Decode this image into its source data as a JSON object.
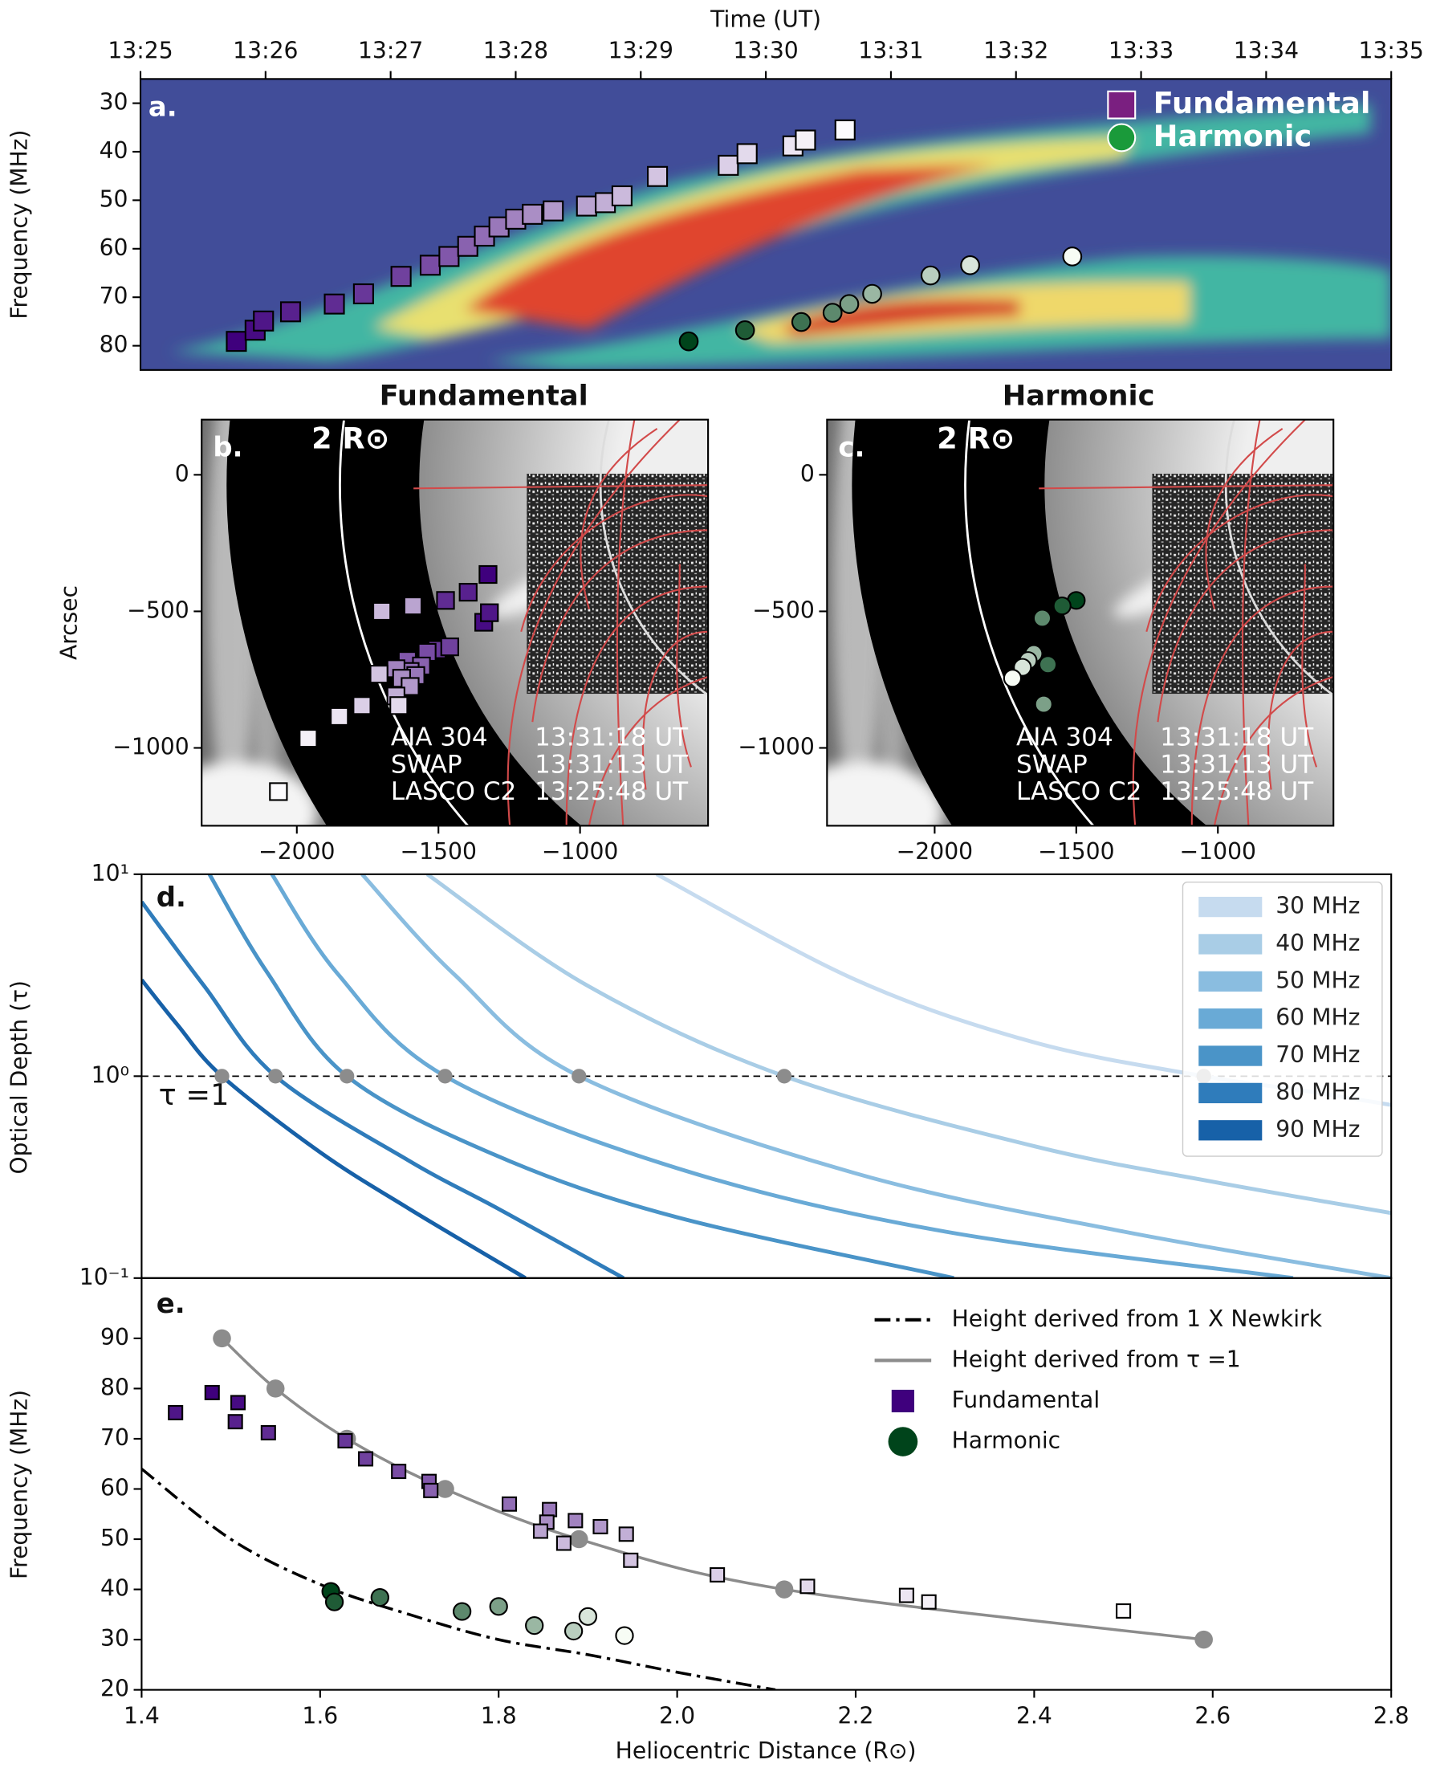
{
  "chart_data": [
    {
      "type": "scatter",
      "label": "a.",
      "xlabel": "Time (UT)",
      "ylabel": "Frequency (MHz)",
      "xlim": [
        "13:25",
        "13:35"
      ],
      "xticks": [
        "13:25",
        "13:26",
        "13:27",
        "13:28",
        "13:29",
        "13:30",
        "13:31",
        "13:32",
        "13:33",
        "13:34",
        "13:35"
      ],
      "ylim": [
        85,
        25
      ],
      "yticks": [
        30,
        40,
        50,
        60,
        70,
        80
      ],
      "legend": "upper right",
      "series": [
        {
          "name": "Fundamental",
          "marker": "square",
          "color": "#7a1f80",
          "colormap": [
            "#3f007d",
            "#fcfbfd"
          ],
          "x": [
            "13:25:46",
            "13:25:55",
            "13:25:59",
            "13:26:12",
            "13:26:33",
            "13:26:47",
            "13:27:05",
            "13:27:19",
            "13:27:28",
            "13:27:37",
            "13:27:45",
            "13:27:52",
            "13:28:00",
            "13:28:08",
            "13:28:18",
            "13:28:34",
            "13:28:43",
            "13:28:51",
            "13:29:08",
            "13:29:42",
            "13:29:51",
            "13:30:13",
            "13:30:19",
            "13:30:38"
          ],
          "values": [
            79.1,
            76.8,
            74.9,
            73.0,
            71.4,
            69.3,
            65.7,
            63.4,
            61.6,
            59.5,
            57.4,
            55.5,
            53.9,
            52.9,
            52.2,
            51.2,
            50.5,
            49.1,
            45.1,
            42.8,
            40.4,
            38.8,
            37.6,
            35.5
          ]
        },
        {
          "name": "Harmonic",
          "marker": "circle",
          "color": "#1a9a3a",
          "colormap": [
            "#00441b",
            "#f7fcf5"
          ],
          "x": [
            "13:29:23",
            "13:29:50",
            "13:30:17",
            "13:30:32",
            "13:30:40",
            "13:30:51",
            "13:31:19",
            "13:31:38",
            "13:32:27"
          ],
          "values": [
            79.1,
            76.8,
            75.1,
            73.2,
            71.4,
            69.3,
            65.5,
            63.4,
            61.6
          ]
        }
      ]
    },
    {
      "type": "scatter",
      "label": "b.",
      "title": "Fundamental",
      "ylabel": "Arcsec",
      "xlim": [
        -2336,
        -548
      ],
      "xticks": [
        {
          "value": -2000,
          "label": "−2000"
        },
        {
          "value": -1500,
          "label": "−1500"
        },
        {
          "value": -1000,
          "label": "−1000"
        }
      ],
      "ylim": [
        -1285,
        202
      ],
      "yticks": [
        0,
        {
          "value": -500,
          "label": "−500"
        },
        {
          "value": -1000,
          "label": "−1000"
        }
      ],
      "annotations": {
        "limb": "2 R⊙",
        "instruments": [
          "AIA 304",
          "SWAP",
          "LASCO C2"
        ],
        "times": [
          "13:31:18 UT",
          "13:31:13 UT",
          "13:25:48 UT"
        ]
      },
      "series": [
        {
          "marker": "square",
          "colormap": [
            "#3f007d",
            "#fcfbfd"
          ],
          "x": [
            -1325,
            -1340,
            -1320,
            -1395,
            -1475,
            -1505,
            -1460,
            -1540,
            -1610,
            -1560,
            -1600,
            -1580,
            -1650,
            -1630,
            -1600,
            -1590,
            -1650,
            -1700,
            -1710,
            -1770,
            -1640,
            -1850,
            -1960,
            -2065
          ],
          "values": [
            -365,
            -540,
            -505,
            -430,
            -460,
            -640,
            -630,
            -650,
            -680,
            -700,
            -720,
            -735,
            -710,
            -745,
            -775,
            -480,
            -810,
            -500,
            -730,
            -845,
            -845,
            -885,
            -965,
            -1160
          ]
        }
      ]
    },
    {
      "type": "scatter",
      "label": "c.",
      "title": "Harmonic",
      "xlim": [
        -2380,
        -592
      ],
      "xticks": [
        {
          "value": -2000,
          "label": "−2000"
        },
        {
          "value": -1500,
          "label": "−1500"
        },
        {
          "value": -1000,
          "label": "−1000"
        }
      ],
      "ylim": [
        -1285,
        202
      ],
      "yticks": [
        0,
        {
          "value": -500,
          "label": "−500"
        },
        {
          "value": -1000,
          "label": "−1000"
        }
      ],
      "annotations": {
        "limb": "2 R⊙",
        "instruments": [
          "AIA 304",
          "SWAP",
          "LASCO C2"
        ],
        "times": [
          "13:31:18 UT",
          "13:31:13 UT",
          "13:25:48 UT"
        ]
      },
      "series": [
        {
          "marker": "circle",
          "colormap": [
            "#00441b",
            "#f7fcf5"
          ],
          "x": [
            -1500,
            -1550,
            -1600,
            -1620,
            -1615,
            -1650,
            -1670,
            -1690,
            -1725
          ],
          "values": [
            -460,
            -480,
            -695,
            -525,
            -840,
            -655,
            -680,
            -705,
            -745
          ]
        }
      ]
    },
    {
      "type": "line",
      "label": "d.",
      "ylabel": "Optical Depth (τ)",
      "yscale": "log",
      "xlim": [
        1.4,
        2.8
      ],
      "ylim": [
        0.1,
        10
      ],
      "yticks": [
        {
          "value": 0.1,
          "label": "10⁻¹"
        },
        {
          "value": 1,
          "label": "10⁰"
        },
        {
          "value": 10,
          "label": "10¹"
        }
      ],
      "legend": "upper right",
      "hline": {
        "value": 1,
        "label": "τ =1"
      },
      "crossings": {
        "color": "#8c8c8c",
        "x": [
          1.49,
          1.55,
          1.63,
          1.74,
          1.89,
          2.12,
          2.59
        ],
        "values": [
          1,
          1,
          1,
          1,
          1,
          1,
          1
        ]
      },
      "series": [
        {
          "name": "30 MHz",
          "color": "#c6dbef",
          "linestyle": "solid",
          "x": [
            1.977,
            2.2,
            2.4,
            2.59,
            2.7,
            2.8
          ],
          "values": [
            10,
            3.0,
            1.47,
            1,
            0.85,
            0.72
          ]
        },
        {
          "name": "40 MHz",
          "color": "#a9cde6",
          "linestyle": "solid",
          "x": [
            1.72,
            1.9,
            2.12,
            2.4,
            2.6,
            2.8
          ],
          "values": [
            10,
            2.8,
            1,
            0.45,
            0.3,
            0.21
          ]
        },
        {
          "name": "50 MHz",
          "color": "#8abde0",
          "linestyle": "solid",
          "x": [
            1.647,
            1.75,
            1.89,
            2.2,
            2.5,
            2.8
          ],
          "values": [
            10,
            3.2,
            1,
            0.33,
            0.17,
            0.1
          ]
        },
        {
          "name": "60 MHz",
          "color": "#69aad6",
          "linestyle": "solid",
          "x": [
            1.546,
            1.62,
            1.74,
            2.0,
            2.3,
            2.69
          ],
          "values": [
            10,
            3.2,
            1,
            0.35,
            0.17,
            0.1
          ]
        },
        {
          "name": "70 MHz",
          "color": "#4a94c8",
          "linestyle": "solid",
          "x": [
            1.476,
            1.54,
            1.63,
            1.8,
            2.0,
            2.31
          ],
          "values": [
            10,
            3.3,
            1,
            0.4,
            0.2,
            0.1
          ]
        },
        {
          "name": "80 MHz",
          "color": "#2f7cbb",
          "linestyle": "solid",
          "x": [
            1.4,
            1.47,
            1.55,
            1.7,
            1.8,
            1.94
          ],
          "values": [
            7.3,
            2.8,
            1,
            0.38,
            0.22,
            0.1
          ]
        },
        {
          "name": "90 MHz",
          "color": "#1761a8",
          "linestyle": "solid",
          "x": [
            1.4,
            1.44,
            1.49,
            1.6,
            1.7,
            1.83
          ],
          "values": [
            3.0,
            1.8,
            1,
            0.42,
            0.22,
            0.1
          ]
        }
      ]
    },
    {
      "type": "line",
      "label": "e.",
      "xlabel": "Heliocentric Distance (R⊙)",
      "ylabel": "Frequency (MHz)",
      "xlim": [
        1.4,
        2.8
      ],
      "xticks": [
        1.4,
        1.6,
        1.8,
        {
          "value": 2,
          "label": "2.0"
        },
        2.2,
        2.4,
        2.6,
        2.8
      ],
      "ylim": [
        20,
        102
      ],
      "yticks": [
        20,
        30,
        40,
        50,
        60,
        70,
        80,
        90
      ],
      "legend": "upper right",
      "series": [
        {
          "name": "Height derived from 1 X Newkirk",
          "color": "#000000",
          "linestyle": "dashdot",
          "x": [
            1.4,
            1.5,
            1.6,
            1.7,
            1.8,
            1.9,
            2.0,
            2.11
          ],
          "values": [
            64,
            50,
            41,
            35,
            30,
            27,
            23.5,
            20
          ]
        },
        {
          "name": "Height derived from τ =1",
          "color": "#8c8c8c",
          "linestyle": "solid",
          "marker": "circle",
          "x": [
            1.49,
            1.55,
            1.63,
            1.74,
            1.89,
            2.12,
            2.59
          ],
          "values": [
            90,
            80,
            70,
            60,
            50,
            40,
            30
          ]
        },
        {
          "name": "Fundamental",
          "marker": "square",
          "color": "#3f007d",
          "colormap": [
            "#3f007d",
            "#fcfbfd"
          ],
          "x": [
            1.479,
            1.508,
            1.438,
            1.505,
            1.542,
            1.628,
            1.651,
            1.688,
            1.722,
            1.724,
            1.812,
            1.857,
            1.886,
            1.854,
            1.914,
            1.847,
            1.943,
            1.873,
            1.948,
            2.045,
            2.146,
            2.257,
            2.282,
            2.5
          ],
          "values": [
            79.2,
            77.2,
            75.2,
            73.4,
            71.2,
            69.6,
            66.0,
            63.5,
            61.5,
            59.7,
            57.0,
            55.9,
            53.7,
            53.4,
            52.5,
            51.6,
            51.0,
            49.2,
            45.8,
            42.9,
            40.6,
            38.8,
            37.5,
            35.7
          ]
        },
        {
          "name": "Harmonic",
          "marker": "circle",
          "color": "#00441b",
          "colormap": [
            "#00441b",
            "#f7fcf5"
          ],
          "x": [
            1.612,
            1.616,
            1.667,
            1.759,
            1.8,
            1.84,
            1.884,
            1.9,
            1.941
          ],
          "values": [
            39.6,
            37.5,
            38.4,
            35.6,
            36.6,
            32.8,
            31.7,
            34.6,
            30.8
          ]
        }
      ]
    }
  ]
}
